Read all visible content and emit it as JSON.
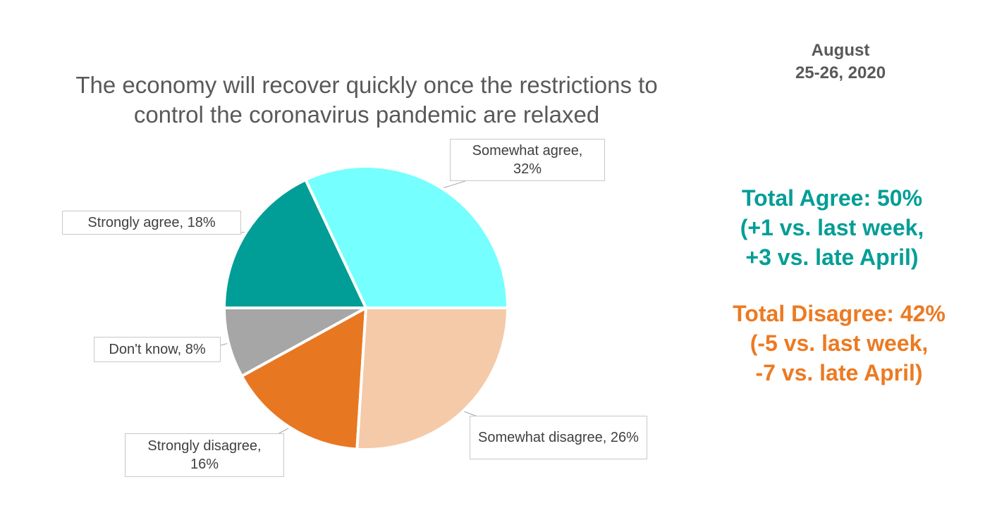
{
  "date": {
    "line1": "August",
    "line2": "25-26, 2020"
  },
  "title": {
    "line1": "The economy will recover quickly once the restrictions to",
    "line2": "control the coronavirus pandemic are relaxed"
  },
  "summary": {
    "agree": {
      "line1": "Total Agree:  50%",
      "line2": "(+1 vs. last week,",
      "line3": "+3 vs. late April)",
      "color": "#009e96"
    },
    "disagree": {
      "line1": "Total Disagree: 42%",
      "line2": "(-5 vs. last week,",
      "line3": "-7 vs. late April)",
      "color": "#ec7a22"
    }
  },
  "chart_data": {
    "type": "pie",
    "title": "The economy will recover quickly once the restrictions to control the coronavirus pandemic are relaxed",
    "slices": [
      {
        "label": "Somewhat agree",
        "value": 32,
        "display": "Somewhat agree, 32%",
        "color": "#75ffff"
      },
      {
        "label": "Somewhat disagree",
        "value": 26,
        "display": "Somewhat disagree, 26%",
        "color": "#f5caa8"
      },
      {
        "label": "Strongly disagree",
        "value": 16,
        "display": "Strongly disagree, 16%",
        "color": "#e87722"
      },
      {
        "label": "Don't know",
        "value": 8,
        "display": "Don't know, 8%",
        "color": "#a6a6a6"
      },
      {
        "label": "Strongly agree",
        "value": 18,
        "display": "Strongly agree, 18%",
        "color": "#009e96"
      }
    ]
  }
}
